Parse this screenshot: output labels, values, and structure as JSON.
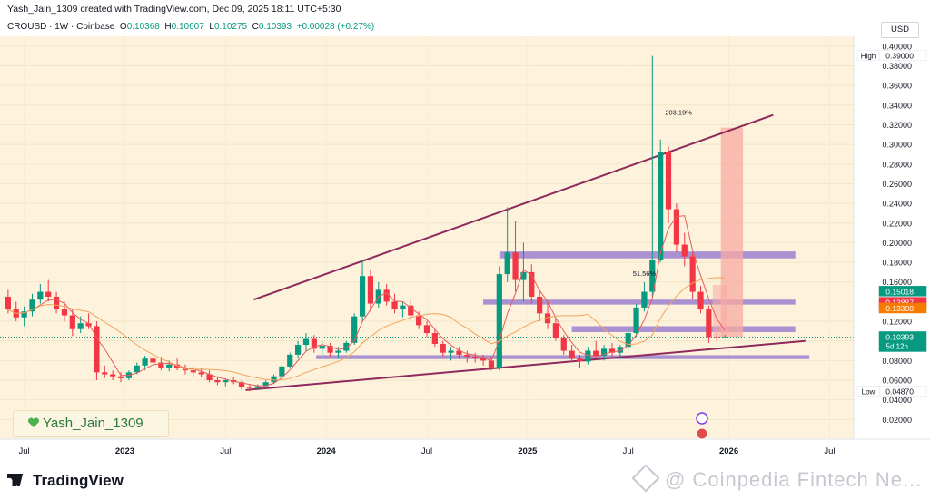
{
  "header": {
    "creator_line": "Yash_Jain_1309 created with TradingView.com, Dec 09, 2025 18:11 UTC+5:30",
    "symbol": "CROUSD · 1W · Coinbase",
    "open_label": "O",
    "open": "0.10368",
    "high_label": "H",
    "high": "0.10607",
    "low_label": "L",
    "low": "0.10275",
    "close_label": "C",
    "close": "0.10393",
    "change": "+0.00028 (+0.27%)",
    "currency": "USD"
  },
  "footer": {
    "brand": "TradingView",
    "watermark": "@ Coinpedia Fintech Ne..."
  },
  "signature": "Yash_Jain_1309",
  "colors": {
    "background": "#ffffff",
    "chart_bg": "#fdf3dd",
    "up": "#089981",
    "down": "#f23645",
    "trendline": "#8e2a5c",
    "support_band": "#9b7fcf",
    "target_box": "#f7a9a0"
  },
  "chart_data": {
    "type": "candlestick",
    "x_ticks": [
      "Jul",
      "2023",
      "Jul",
      "2024",
      "Jul",
      "2025",
      "Jul",
      "2026",
      "Jul"
    ],
    "y_ticks": [
      0.4,
      0.38,
      0.36,
      0.34,
      0.32,
      0.3,
      0.28,
      0.26,
      0.24,
      0.22,
      0.2,
      0.18,
      0.16,
      0.12,
      0.1,
      0.08,
      0.06,
      0.04,
      0.02
    ],
    "y_tick_labels": [
      "0.40000",
      "0.38000",
      "0.36000",
      "0.34000",
      "0.32000",
      "0.30000",
      "0.28000",
      "0.26000",
      "0.24000",
      "0.22000",
      "0.20000",
      "0.18000",
      "0.16000",
      "0.12000",
      "0.10000",
      "0.08000",
      "0.06000",
      "0.04000",
      "0.02000"
    ],
    "ylim": [
      0.0,
      0.41
    ],
    "price_labels": [
      {
        "text": "High",
        "value": "0.39000",
        "price": 0.39,
        "style": "plain"
      },
      {
        "text": "",
        "value": "0.15018",
        "price": 0.15018,
        "style": "teal"
      },
      {
        "text": "",
        "value": "0.13887",
        "price": 0.13887,
        "style": "red"
      },
      {
        "text": "",
        "value": "0.13300",
        "price": 0.133,
        "style": "orange"
      },
      {
        "text": "",
        "value": "0.10393",
        "sub": "5d 12h",
        "price": 0.10393,
        "style": "teal"
      },
      {
        "text": "Low",
        "value": "0.04870",
        "price": 0.0487,
        "style": "plain"
      }
    ],
    "annotations": [
      {
        "text": "203.19%",
        "x": 2025.75,
        "y": 0.33
      },
      {
        "text": "51.56%",
        "x": 2025.58,
        "y": 0.166
      }
    ],
    "support_bands": [
      {
        "from": 2023.95,
        "to": 2026.4,
        "y0": 0.0815,
        "y1": 0.0855
      },
      {
        "from": 2025.22,
        "to": 2026.33,
        "y0": 0.109,
        "y1": 0.115
      },
      {
        "from": 2024.78,
        "to": 2026.33,
        "y0": 0.137,
        "y1": 0.142
      },
      {
        "from": 2024.86,
        "to": 2026.33,
        "y0": 0.184,
        "y1": 0.191
      }
    ],
    "trendlines": [
      {
        "x1": 2023.6,
        "y1": 0.05,
        "x2": 2026.38,
        "y2": 0.1
      },
      {
        "x1": 2023.64,
        "y1": 0.142,
        "x2": 2026.22,
        "y2": 0.33
      }
    ],
    "target_box": {
      "x0": 2025.96,
      "x1": 2026.07,
      "y0": 0.104,
      "y1": 0.317
    },
    "target_box_small": {
      "x0": 2025.92,
      "x1": 2025.99,
      "y0": 0.104,
      "y1": 0.157
    },
    "series": [
      {
        "t": 2022.42,
        "o": 0.145,
        "h": 0.152,
        "l": 0.128,
        "c": 0.132
      },
      {
        "t": 2022.46,
        "o": 0.132,
        "h": 0.14,
        "l": 0.12,
        "c": 0.124
      },
      {
        "t": 2022.5,
        "o": 0.124,
        "h": 0.135,
        "l": 0.115,
        "c": 0.13
      },
      {
        "t": 2022.54,
        "o": 0.13,
        "h": 0.148,
        "l": 0.125,
        "c": 0.142
      },
      {
        "t": 2022.58,
        "o": 0.142,
        "h": 0.158,
        "l": 0.138,
        "c": 0.15
      },
      {
        "t": 2022.62,
        "o": 0.15,
        "h": 0.162,
        "l": 0.14,
        "c": 0.145
      },
      {
        "t": 2022.66,
        "o": 0.145,
        "h": 0.15,
        "l": 0.128,
        "c": 0.132
      },
      {
        "t": 2022.7,
        "o": 0.132,
        "h": 0.14,
        "l": 0.12,
        "c": 0.126
      },
      {
        "t": 2022.74,
        "o": 0.126,
        "h": 0.132,
        "l": 0.105,
        "c": 0.112
      },
      {
        "t": 2022.78,
        "o": 0.112,
        "h": 0.125,
        "l": 0.108,
        "c": 0.118
      },
      {
        "t": 2022.82,
        "o": 0.118,
        "h": 0.128,
        "l": 0.112,
        "c": 0.115
      },
      {
        "t": 2022.86,
        "o": 0.115,
        "h": 0.12,
        "l": 0.06,
        "c": 0.068
      },
      {
        "t": 2022.9,
        "o": 0.068,
        "h": 0.075,
        "l": 0.062,
        "c": 0.066
      },
      {
        "t": 2022.94,
        "o": 0.066,
        "h": 0.07,
        "l": 0.06,
        "c": 0.064
      },
      {
        "t": 2022.98,
        "o": 0.064,
        "h": 0.068,
        "l": 0.058,
        "c": 0.062
      },
      {
        "t": 2023.02,
        "o": 0.062,
        "h": 0.07,
        "l": 0.06,
        "c": 0.068
      },
      {
        "t": 2023.06,
        "o": 0.068,
        "h": 0.078,
        "l": 0.066,
        "c": 0.075
      },
      {
        "t": 2023.1,
        "o": 0.075,
        "h": 0.085,
        "l": 0.07,
        "c": 0.082
      },
      {
        "t": 2023.14,
        "o": 0.082,
        "h": 0.09,
        "l": 0.074,
        "c": 0.078
      },
      {
        "t": 2023.18,
        "o": 0.078,
        "h": 0.084,
        "l": 0.07,
        "c": 0.073
      },
      {
        "t": 2023.22,
        "o": 0.073,
        "h": 0.08,
        "l": 0.069,
        "c": 0.076
      },
      {
        "t": 2023.26,
        "o": 0.076,
        "h": 0.082,
        "l": 0.07,
        "c": 0.072
      },
      {
        "t": 2023.3,
        "o": 0.072,
        "h": 0.076,
        "l": 0.066,
        "c": 0.07
      },
      {
        "t": 2023.34,
        "o": 0.07,
        "h": 0.074,
        "l": 0.064,
        "c": 0.068
      },
      {
        "t": 2023.38,
        "o": 0.068,
        "h": 0.072,
        "l": 0.063,
        "c": 0.066
      },
      {
        "t": 2023.42,
        "o": 0.066,
        "h": 0.07,
        "l": 0.058,
        "c": 0.06
      },
      {
        "t": 2023.46,
        "o": 0.06,
        "h": 0.064,
        "l": 0.055,
        "c": 0.058
      },
      {
        "t": 2023.5,
        "o": 0.058,
        "h": 0.062,
        "l": 0.054,
        "c": 0.06
      },
      {
        "t": 2023.54,
        "o": 0.06,
        "h": 0.063,
        "l": 0.056,
        "c": 0.058
      },
      {
        "t": 2023.58,
        "o": 0.058,
        "h": 0.06,
        "l": 0.05,
        "c": 0.053
      },
      {
        "t": 2023.62,
        "o": 0.053,
        "h": 0.056,
        "l": 0.0487,
        "c": 0.052
      },
      {
        "t": 2023.66,
        "o": 0.052,
        "h": 0.056,
        "l": 0.05,
        "c": 0.054
      },
      {
        "t": 2023.7,
        "o": 0.054,
        "h": 0.06,
        "l": 0.052,
        "c": 0.058
      },
      {
        "t": 2023.74,
        "o": 0.058,
        "h": 0.066,
        "l": 0.056,
        "c": 0.064
      },
      {
        "t": 2023.78,
        "o": 0.064,
        "h": 0.076,
        "l": 0.062,
        "c": 0.074
      },
      {
        "t": 2023.82,
        "o": 0.074,
        "h": 0.088,
        "l": 0.072,
        "c": 0.086
      },
      {
        "t": 2023.86,
        "o": 0.086,
        "h": 0.1,
        "l": 0.083,
        "c": 0.096
      },
      {
        "t": 2023.9,
        "o": 0.096,
        "h": 0.108,
        "l": 0.09,
        "c": 0.102
      },
      {
        "t": 2023.94,
        "o": 0.102,
        "h": 0.106,
        "l": 0.088,
        "c": 0.092
      },
      {
        "t": 2023.98,
        "o": 0.092,
        "h": 0.1,
        "l": 0.086,
        "c": 0.095
      },
      {
        "t": 2024.02,
        "o": 0.095,
        "h": 0.098,
        "l": 0.084,
        "c": 0.088
      },
      {
        "t": 2024.06,
        "o": 0.088,
        "h": 0.094,
        "l": 0.082,
        "c": 0.09
      },
      {
        "t": 2024.1,
        "o": 0.09,
        "h": 0.1,
        "l": 0.088,
        "c": 0.098
      },
      {
        "t": 2024.14,
        "o": 0.098,
        "h": 0.128,
        "l": 0.096,
        "c": 0.125
      },
      {
        "t": 2024.18,
        "o": 0.125,
        "h": 0.182,
        "l": 0.12,
        "c": 0.166
      },
      {
        "t": 2024.22,
        "o": 0.166,
        "h": 0.172,
        "l": 0.13,
        "c": 0.138
      },
      {
        "t": 2024.26,
        "o": 0.138,
        "h": 0.16,
        "l": 0.134,
        "c": 0.152
      },
      {
        "t": 2024.3,
        "o": 0.152,
        "h": 0.158,
        "l": 0.136,
        "c": 0.14
      },
      {
        "t": 2024.34,
        "o": 0.14,
        "h": 0.148,
        "l": 0.128,
        "c": 0.132
      },
      {
        "t": 2024.38,
        "o": 0.132,
        "h": 0.14,
        "l": 0.124,
        "c": 0.136
      },
      {
        "t": 2024.42,
        "o": 0.136,
        "h": 0.142,
        "l": 0.122,
        "c": 0.126
      },
      {
        "t": 2024.46,
        "o": 0.126,
        "h": 0.13,
        "l": 0.112,
        "c": 0.116
      },
      {
        "t": 2024.5,
        "o": 0.116,
        "h": 0.12,
        "l": 0.104,
        "c": 0.108
      },
      {
        "t": 2024.54,
        "o": 0.108,
        "h": 0.112,
        "l": 0.094,
        "c": 0.097
      },
      {
        "t": 2024.58,
        "o": 0.097,
        "h": 0.1,
        "l": 0.084,
        "c": 0.088
      },
      {
        "t": 2024.62,
        "o": 0.088,
        "h": 0.094,
        "l": 0.08,
        "c": 0.09
      },
      {
        "t": 2024.66,
        "o": 0.09,
        "h": 0.094,
        "l": 0.082,
        "c": 0.086
      },
      {
        "t": 2024.7,
        "o": 0.086,
        "h": 0.09,
        "l": 0.078,
        "c": 0.084
      },
      {
        "t": 2024.74,
        "o": 0.084,
        "h": 0.088,
        "l": 0.078,
        "c": 0.082
      },
      {
        "t": 2024.78,
        "o": 0.082,
        "h": 0.086,
        "l": 0.075,
        "c": 0.08
      },
      {
        "t": 2024.82,
        "o": 0.08,
        "h": 0.084,
        "l": 0.07,
        "c": 0.073
      },
      {
        "t": 2024.86,
        "o": 0.073,
        "h": 0.176,
        "l": 0.07,
        "c": 0.168
      },
      {
        "t": 2024.9,
        "o": 0.168,
        "h": 0.236,
        "l": 0.16,
        "c": 0.19
      },
      {
        "t": 2024.94,
        "o": 0.19,
        "h": 0.222,
        "l": 0.15,
        "c": 0.162
      },
      {
        "t": 2024.98,
        "o": 0.162,
        "h": 0.2,
        "l": 0.14,
        "c": 0.17
      },
      {
        "t": 2025.02,
        "o": 0.17,
        "h": 0.178,
        "l": 0.138,
        "c": 0.145
      },
      {
        "t": 2025.06,
        "o": 0.145,
        "h": 0.152,
        "l": 0.12,
        "c": 0.128
      },
      {
        "t": 2025.1,
        "o": 0.128,
        "h": 0.14,
        "l": 0.112,
        "c": 0.118
      },
      {
        "t": 2025.14,
        "o": 0.118,
        "h": 0.124,
        "l": 0.1,
        "c": 0.103
      },
      {
        "t": 2025.18,
        "o": 0.103,
        "h": 0.106,
        "l": 0.086,
        "c": 0.09
      },
      {
        "t": 2025.22,
        "o": 0.09,
        "h": 0.096,
        "l": 0.078,
        "c": 0.082
      },
      {
        "t": 2025.26,
        "o": 0.082,
        "h": 0.086,
        "l": 0.072,
        "c": 0.079
      },
      {
        "t": 2025.3,
        "o": 0.079,
        "h": 0.094,
        "l": 0.076,
        "c": 0.09
      },
      {
        "t": 2025.34,
        "o": 0.09,
        "h": 0.1,
        "l": 0.086,
        "c": 0.085
      },
      {
        "t": 2025.38,
        "o": 0.085,
        "h": 0.096,
        "l": 0.08,
        "c": 0.092
      },
      {
        "t": 2025.42,
        "o": 0.092,
        "h": 0.098,
        "l": 0.084,
        "c": 0.088
      },
      {
        "t": 2025.46,
        "o": 0.088,
        "h": 0.096,
        "l": 0.082,
        "c": 0.094
      },
      {
        "t": 2025.5,
        "o": 0.094,
        "h": 0.112,
        "l": 0.09,
        "c": 0.108
      },
      {
        "t": 2025.54,
        "o": 0.108,
        "h": 0.138,
        "l": 0.104,
        "c": 0.134
      },
      {
        "t": 2025.58,
        "o": 0.134,
        "h": 0.16,
        "l": 0.13,
        "c": 0.15
      },
      {
        "t": 2025.62,
        "o": 0.15,
        "h": 0.39,
        "l": 0.145,
        "c": 0.182
      },
      {
        "t": 2025.66,
        "o": 0.182,
        "h": 0.305,
        "l": 0.18,
        "c": 0.292
      },
      {
        "t": 2025.7,
        "o": 0.292,
        "h": 0.298,
        "l": 0.22,
        "c": 0.234
      },
      {
        "t": 2025.74,
        "o": 0.234,
        "h": 0.24,
        "l": 0.19,
        "c": 0.198
      },
      {
        "t": 2025.78,
        "o": 0.198,
        "h": 0.21,
        "l": 0.176,
        "c": 0.186
      },
      {
        "t": 2025.82,
        "o": 0.186,
        "h": 0.19,
        "l": 0.142,
        "c": 0.15
      },
      {
        "t": 2025.86,
        "o": 0.15,
        "h": 0.156,
        "l": 0.128,
        "c": 0.132
      },
      {
        "t": 2025.9,
        "o": 0.132,
        "h": 0.136,
        "l": 0.098,
        "c": 0.104
      },
      {
        "t": 2025.94,
        "o": 0.104,
        "h": 0.108,
        "l": 0.1,
        "c": 0.10368
      },
      {
        "t": 2025.98,
        "o": 0.10368,
        "h": 0.10607,
        "l": 0.10275,
        "c": 0.10393
      }
    ]
  }
}
